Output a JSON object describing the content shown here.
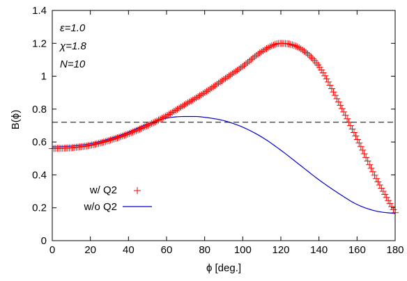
{
  "chart_data": {
    "type": "line",
    "xlabel": "ϕ [deg.]",
    "ylabel": "B(ϕ)",
    "xlim": [
      0,
      180
    ],
    "ylim": [
      0,
      1.4
    ],
    "x_ticks": [
      "0",
      "20",
      "40",
      "60",
      "80",
      "100",
      "120",
      "140",
      "160",
      "180"
    ],
    "y_ticks": [
      "0",
      "0.2",
      "0.4",
      "0.6",
      "0.8",
      "1",
      "1.2",
      "1.4"
    ],
    "grid": false,
    "legend_position": "bottom-left",
    "annotations": [
      "ε=1.0",
      "χ=1.8",
      "N=10"
    ],
    "reference_line": {
      "y": 0.72,
      "style": "dashed",
      "color": "#000000"
    },
    "series": [
      {
        "name": "w/ Q2",
        "marker": "plus",
        "color": "#ff0000",
        "x": [
          0,
          10,
          20,
          30,
          40,
          50,
          60,
          70,
          80,
          90,
          100,
          110,
          120,
          130,
          140,
          150,
          160,
          170,
          180
        ],
        "y": [
          0.56,
          0.565,
          0.58,
          0.61,
          0.65,
          0.7,
          0.76,
          0.83,
          0.9,
          0.98,
          1.06,
          1.15,
          1.2,
          1.17,
          1.06,
          0.85,
          0.62,
          0.38,
          0.17
        ]
      },
      {
        "name": "w/o Q2",
        "marker": "line",
        "color": "#0000cc",
        "x": [
          0,
          10,
          20,
          30,
          40,
          50,
          60,
          70,
          75,
          80,
          90,
          100,
          110,
          120,
          130,
          140,
          150,
          160,
          170,
          180
        ],
        "y": [
          0.57,
          0.575,
          0.59,
          0.62,
          0.66,
          0.71,
          0.745,
          0.755,
          0.755,
          0.75,
          0.73,
          0.69,
          0.63,
          0.55,
          0.46,
          0.37,
          0.29,
          0.22,
          0.18,
          0.165
        ]
      }
    ]
  }
}
